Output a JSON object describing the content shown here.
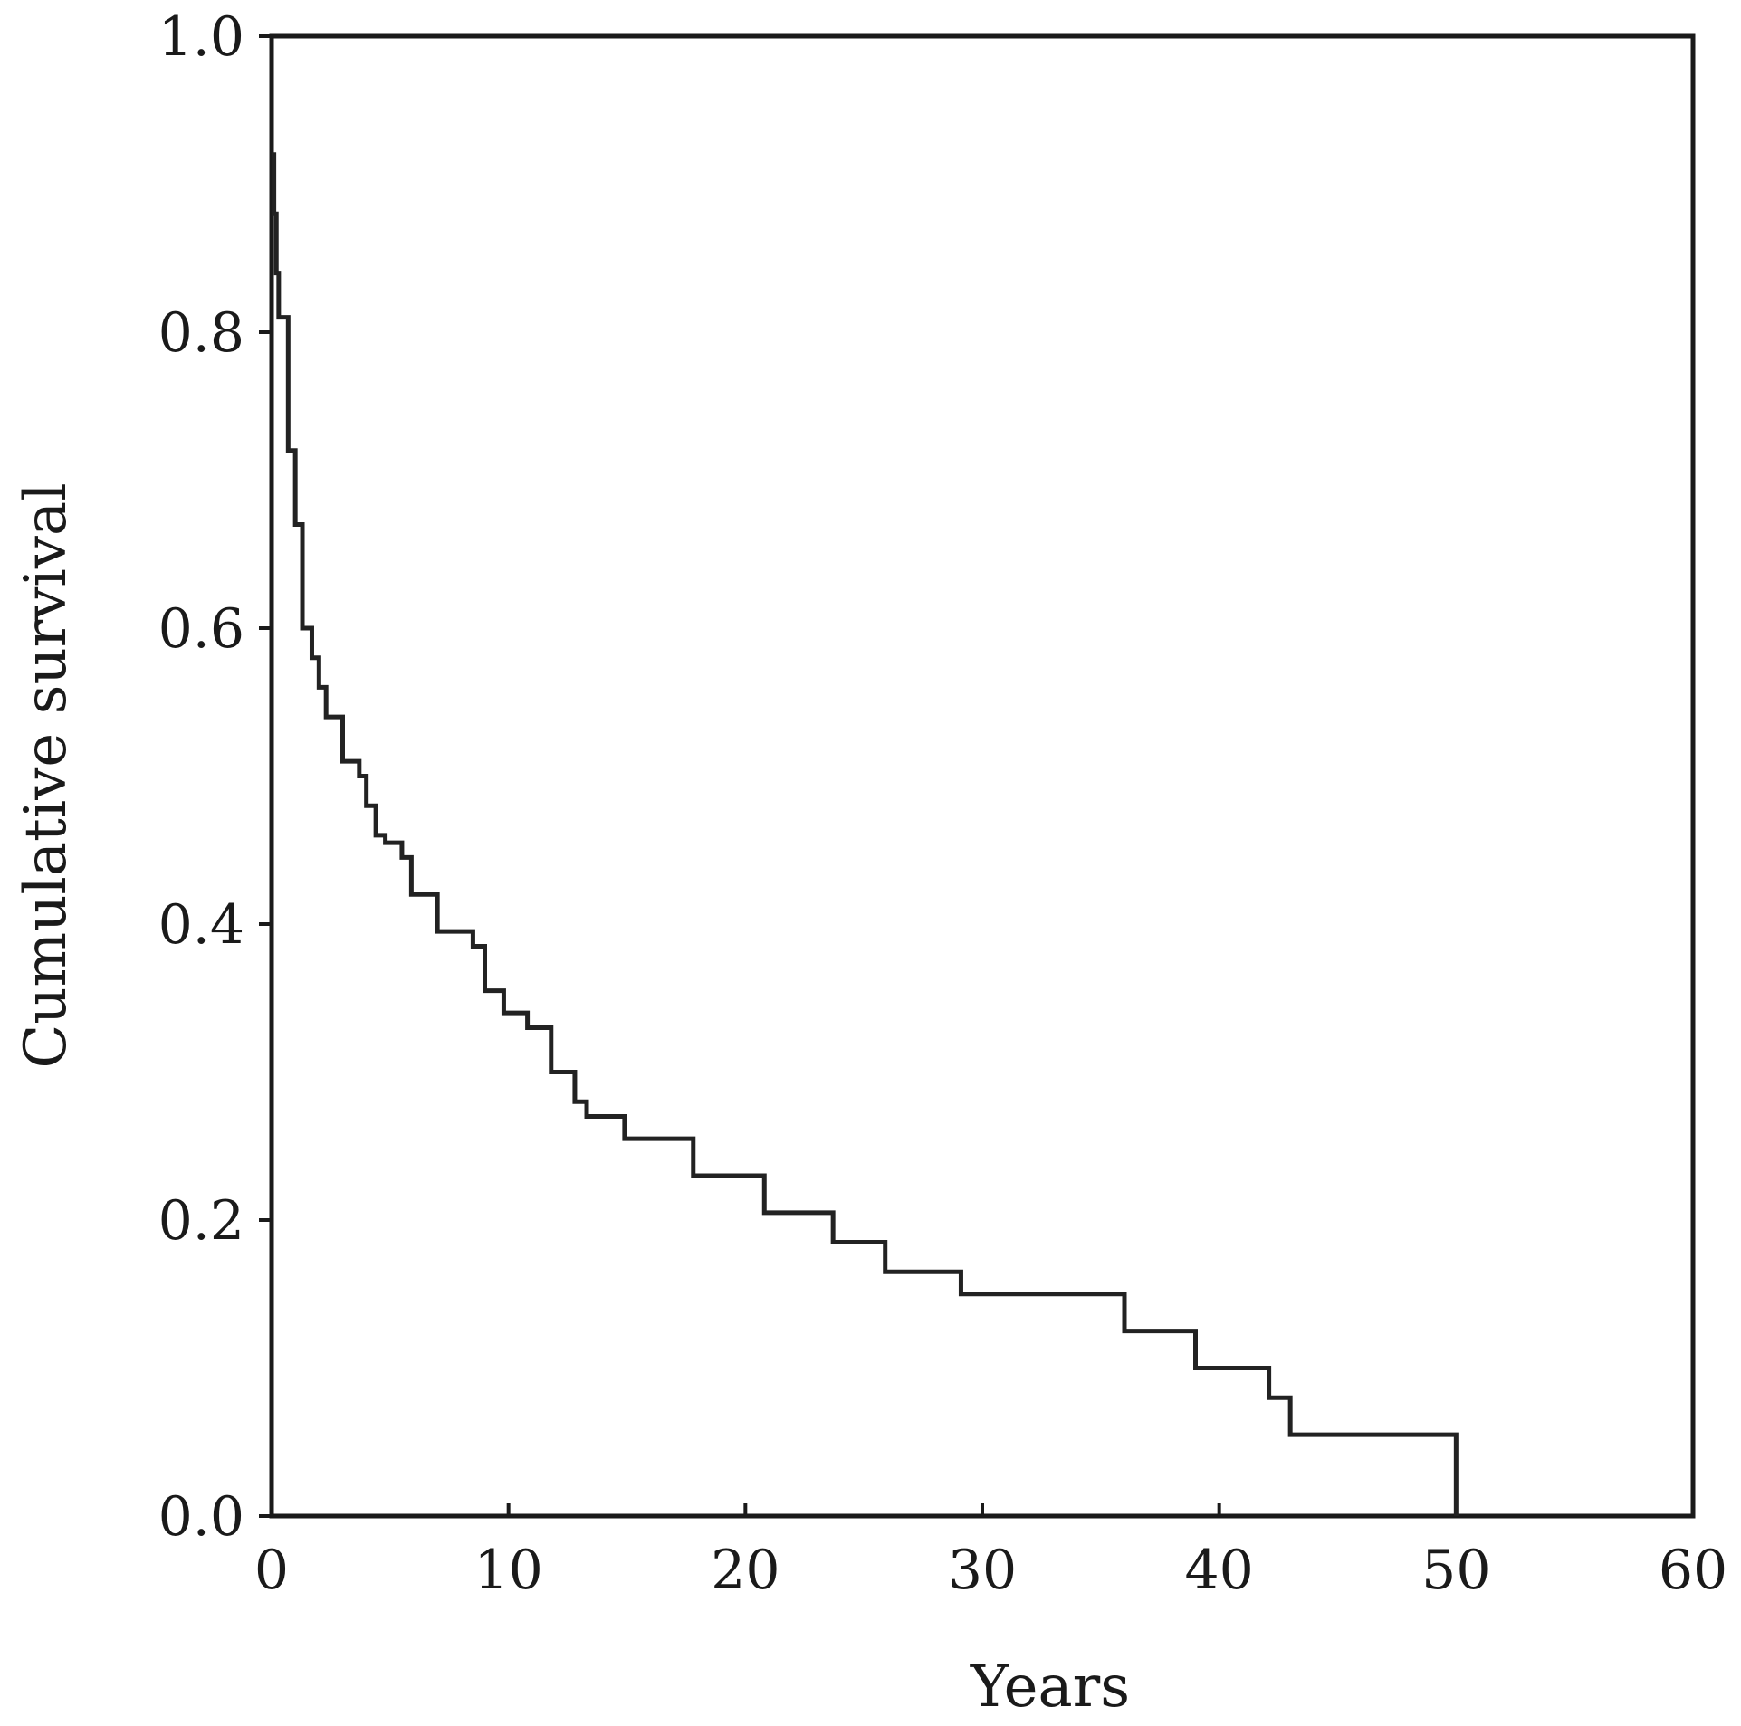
{
  "chart_data": {
    "type": "line",
    "title": "",
    "xlabel": "Years",
    "ylabel": "Cumulative survival",
    "xlim": [
      0,
      60
    ],
    "ylim": [
      0,
      1.0
    ],
    "xticks": [
      0,
      10,
      20,
      30,
      40,
      50,
      60
    ],
    "xtick_labels": [
      "0",
      "10",
      "20",
      "30",
      "40",
      "50",
      "60"
    ],
    "yticks": [
      0,
      0.2,
      0.4,
      0.6,
      0.8,
      1.0
    ],
    "ytick_labels": [
      "0.0",
      "0.2",
      "0.4",
      "0.6",
      "0.8",
      "1.0"
    ],
    "grid": false,
    "legend": "none",
    "step": true,
    "series": [
      {
        "name": "",
        "color": "#222222",
        "points": [
          [
            0,
            0.92
          ],
          [
            0.1,
            0.88
          ],
          [
            0.2,
            0.84
          ],
          [
            0.3,
            0.81
          ],
          [
            0.7,
            0.72
          ],
          [
            1.0,
            0.67
          ],
          [
            1.3,
            0.6
          ],
          [
            1.7,
            0.58
          ],
          [
            2.0,
            0.56
          ],
          [
            2.3,
            0.54
          ],
          [
            3.0,
            0.51
          ],
          [
            3.7,
            0.5
          ],
          [
            4.0,
            0.48
          ],
          [
            4.4,
            0.46
          ],
          [
            4.8,
            0.455
          ],
          [
            5.5,
            0.445
          ],
          [
            5.9,
            0.42
          ],
          [
            7.0,
            0.395
          ],
          [
            8.5,
            0.385
          ],
          [
            9.0,
            0.355
          ],
          [
            9.8,
            0.34
          ],
          [
            10.8,
            0.33
          ],
          [
            11.8,
            0.3
          ],
          [
            12.8,
            0.28
          ],
          [
            13.3,
            0.27
          ],
          [
            14.9,
            0.255
          ],
          [
            17.8,
            0.23
          ],
          [
            20.8,
            0.205
          ],
          [
            23.7,
            0.185
          ],
          [
            25.9,
            0.165
          ],
          [
            29.1,
            0.15
          ],
          [
            36.0,
            0.125
          ],
          [
            39.0,
            0.1
          ],
          [
            42.1,
            0.08
          ],
          [
            43.0,
            0.055
          ],
          [
            50.0,
            0.0
          ]
        ]
      }
    ]
  }
}
